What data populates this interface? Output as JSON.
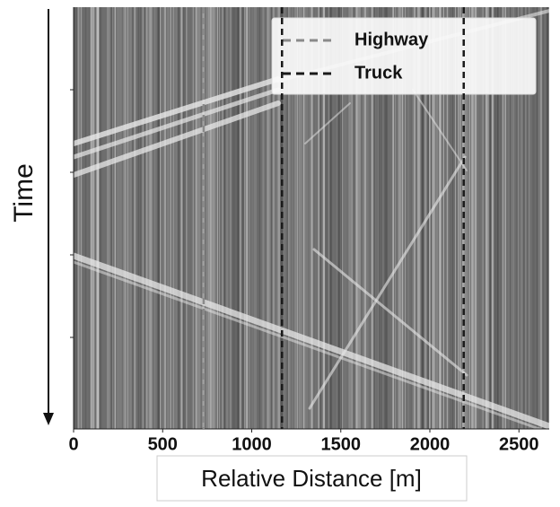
{
  "chart_data": {
    "type": "waterfall",
    "xlabel": "Relative Distance [m]",
    "ylabel": "Time",
    "xlim": [
      0,
      2670
    ],
    "xticks": [
      0,
      500,
      1000,
      1500,
      2000,
      2500
    ],
    "legend": "upper right",
    "series": [
      {
        "name": "Highway",
        "color": "#8a8a8a",
        "values": [
          730
        ]
      },
      {
        "name": "Truck",
        "color": "#1a1a1a",
        "values": [
          1170,
          2190
        ]
      }
    ]
  }
}
